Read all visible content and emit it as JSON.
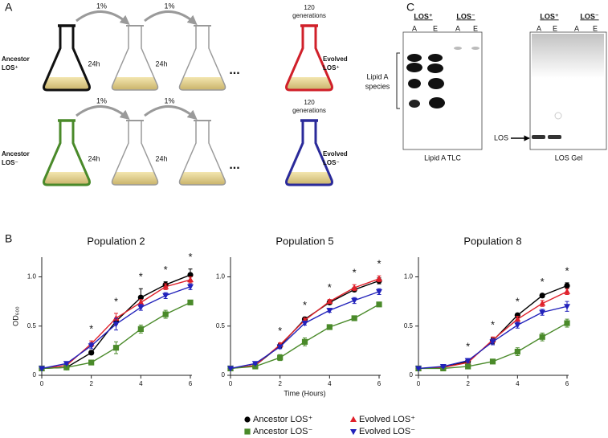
{
  "panel_a": {
    "label": "A",
    "rows": [
      {
        "start": [
          "Ancestor",
          "LOS⁺"
        ],
        "start_color": "#111111",
        "transfers": [
          "1%",
          "1%"
        ],
        "times": [
          "24h",
          "24h"
        ],
        "ellipsis": "...",
        "generations": [
          "120",
          "generations"
        ],
        "end": [
          "Evolved",
          "LOS⁺"
        ],
        "end_color": "#d0202a"
      },
      {
        "start": [
          "Ancestor",
          "LOS⁻"
        ],
        "start_color": "#4a8a2a",
        "transfers": [
          "1%",
          "1%"
        ],
        "times": [
          "24h",
          "24h"
        ],
        "ellipsis": "...",
        "generations": [
          "120",
          "generations"
        ],
        "end": [
          "Evolved",
          "LOS⁻"
        ],
        "end_color": "#2a2a9a"
      }
    ]
  },
  "panel_b": {
    "label": "B"
  },
  "panel_c": {
    "label": "C",
    "tlc": {
      "headers": [
        "LOS⁺",
        "LOS⁻"
      ],
      "lanes": [
        "A",
        "E",
        "A",
        "E"
      ],
      "bracket_label": [
        "Lipid A",
        "species"
      ],
      "caption": "Lipid A TLC"
    },
    "gel": {
      "headers": [
        "LOS⁺",
        "LOS⁻"
      ],
      "lanes": [
        "A",
        "E",
        "A",
        "E"
      ],
      "arrow_label": "LOS",
      "caption": "LOS Gel"
    }
  },
  "chart_data": [
    {
      "type": "line",
      "title": "Population 2",
      "y_label": "OD₆₀₀",
      "x": [
        0,
        1,
        2,
        3,
        4,
        5,
        6
      ],
      "xlim": [
        0,
        6
      ],
      "xticks": [
        0,
        2,
        4,
        6
      ],
      "ylim": [
        0,
        1.2
      ],
      "yticks": [
        0,
        0.5,
        {
          "value": 1,
          "label": "1.0"
        }
      ],
      "stars": {
        "x": [
          2,
          3,
          4,
          5,
          6
        ],
        "label": "*"
      },
      "series": [
        {
          "name": "Ancestor LOS⁺",
          "color": "#000000",
          "marker": "circle",
          "values": [
            0.07,
            0.08,
            0.23,
            0.55,
            0.79,
            0.92,
            1.02
          ],
          "errors": [
            0.005,
            0.01,
            0.02,
            0.03,
            0.09,
            0.03,
            0.06
          ]
        },
        {
          "name": "Evolved LOS⁺",
          "color": "#e0202a",
          "marker": "triangle-up",
          "values": [
            0.07,
            0.1,
            0.32,
            0.58,
            0.74,
            0.9,
            0.97
          ],
          "errors": [
            0.005,
            0.01,
            0.03,
            0.05,
            0.03,
            0.03,
            0.03
          ]
        },
        {
          "name": "Ancestor LOS⁻",
          "color": "#4a8a2a",
          "marker": "square",
          "values": [
            0.07,
            0.08,
            0.13,
            0.28,
            0.47,
            0.62,
            0.74
          ],
          "errors": [
            0.005,
            0.01,
            0.01,
            0.06,
            0.04,
            0.04,
            0.02
          ]
        },
        {
          "name": "Evolved LOS⁻",
          "color": "#2222bb",
          "marker": "triangle-down",
          "values": [
            0.07,
            0.12,
            0.3,
            0.52,
            0.69,
            0.81,
            0.9
          ],
          "errors": [
            0.005,
            0.01,
            0.03,
            0.06,
            0.03,
            0.03,
            0.03
          ]
        }
      ]
    },
    {
      "type": "line",
      "title": "Population 5",
      "x_label": "Time (Hours)",
      "x": [
        0,
        1,
        2,
        3,
        4,
        5,
        6
      ],
      "xlim": [
        0,
        6
      ],
      "xticks": [
        0,
        2,
        4,
        6
      ],
      "ylim": [
        0,
        1.2
      ],
      "yticks": [
        0,
        0.5,
        {
          "value": 1,
          "label": "1.0"
        }
      ],
      "stars": {
        "x": [
          2,
          3,
          4,
          5,
          6
        ],
        "label": "*"
      },
      "series": [
        {
          "color": "#000000",
          "marker": "circle",
          "values": [
            0.07,
            0.1,
            0.3,
            0.57,
            0.74,
            0.87,
            0.96
          ],
          "errors": [
            0.005,
            0.01,
            0.02,
            0.02,
            0.02,
            0.02,
            0.03
          ]
        },
        {
          "color": "#e0202a",
          "marker": "triangle-up",
          "values": [
            0.07,
            0.1,
            0.31,
            0.56,
            0.75,
            0.89,
            0.98
          ],
          "errors": [
            0.005,
            0.01,
            0.02,
            0.02,
            0.02,
            0.03,
            0.03
          ]
        },
        {
          "color": "#4a8a2a",
          "marker": "square",
          "values": [
            0.07,
            0.09,
            0.18,
            0.34,
            0.49,
            0.58,
            0.72
          ],
          "errors": [
            0.005,
            0.01,
            0.03,
            0.04,
            0.01,
            0.01,
            0.01
          ]
        },
        {
          "color": "#2222bb",
          "marker": "triangle-down",
          "values": [
            0.07,
            0.12,
            0.29,
            0.53,
            0.66,
            0.76,
            0.85
          ],
          "errors": [
            0.005,
            0.01,
            0.02,
            0.02,
            0.02,
            0.03,
            0.03
          ]
        }
      ]
    },
    {
      "type": "line",
      "title": "Population 8",
      "x": [
        0,
        1,
        2,
        3,
        4,
        5,
        6
      ],
      "xlim": [
        0,
        6
      ],
      "xticks": [
        0,
        2,
        4,
        6
      ],
      "ylim": [
        0,
        1.2
      ],
      "yticks": [
        0,
        0.5,
        {
          "value": 1,
          "label": "1.0"
        }
      ],
      "stars": {
        "x": [
          2,
          3,
          4,
          5,
          6
        ],
        "label": "*"
      },
      "series": [
        {
          "color": "#000000",
          "marker": "circle",
          "values": [
            0.07,
            0.08,
            0.14,
            0.35,
            0.61,
            0.81,
            0.91
          ],
          "errors": [
            0.005,
            0.01,
            0.01,
            0.03,
            0.02,
            0.02,
            0.03
          ]
        },
        {
          "color": "#e0202a",
          "marker": "triangle-up",
          "values": [
            0.07,
            0.08,
            0.13,
            0.36,
            0.57,
            0.73,
            0.85
          ],
          "errors": [
            0.005,
            0.01,
            0.01,
            0.03,
            0.03,
            0.03,
            0.03
          ]
        },
        {
          "color": "#4a8a2a",
          "marker": "square",
          "values": [
            0.07,
            0.07,
            0.09,
            0.14,
            0.24,
            0.39,
            0.53
          ],
          "errors": [
            0.005,
            0.01,
            0.01,
            0.01,
            0.04,
            0.04,
            0.04
          ]
        },
        {
          "color": "#2222bb",
          "marker": "triangle-down",
          "values": [
            0.07,
            0.09,
            0.15,
            0.34,
            0.51,
            0.64,
            0.7
          ],
          "errors": [
            0.005,
            0.01,
            0.02,
            0.03,
            0.03,
            0.03,
            0.05
          ]
        }
      ]
    }
  ]
}
